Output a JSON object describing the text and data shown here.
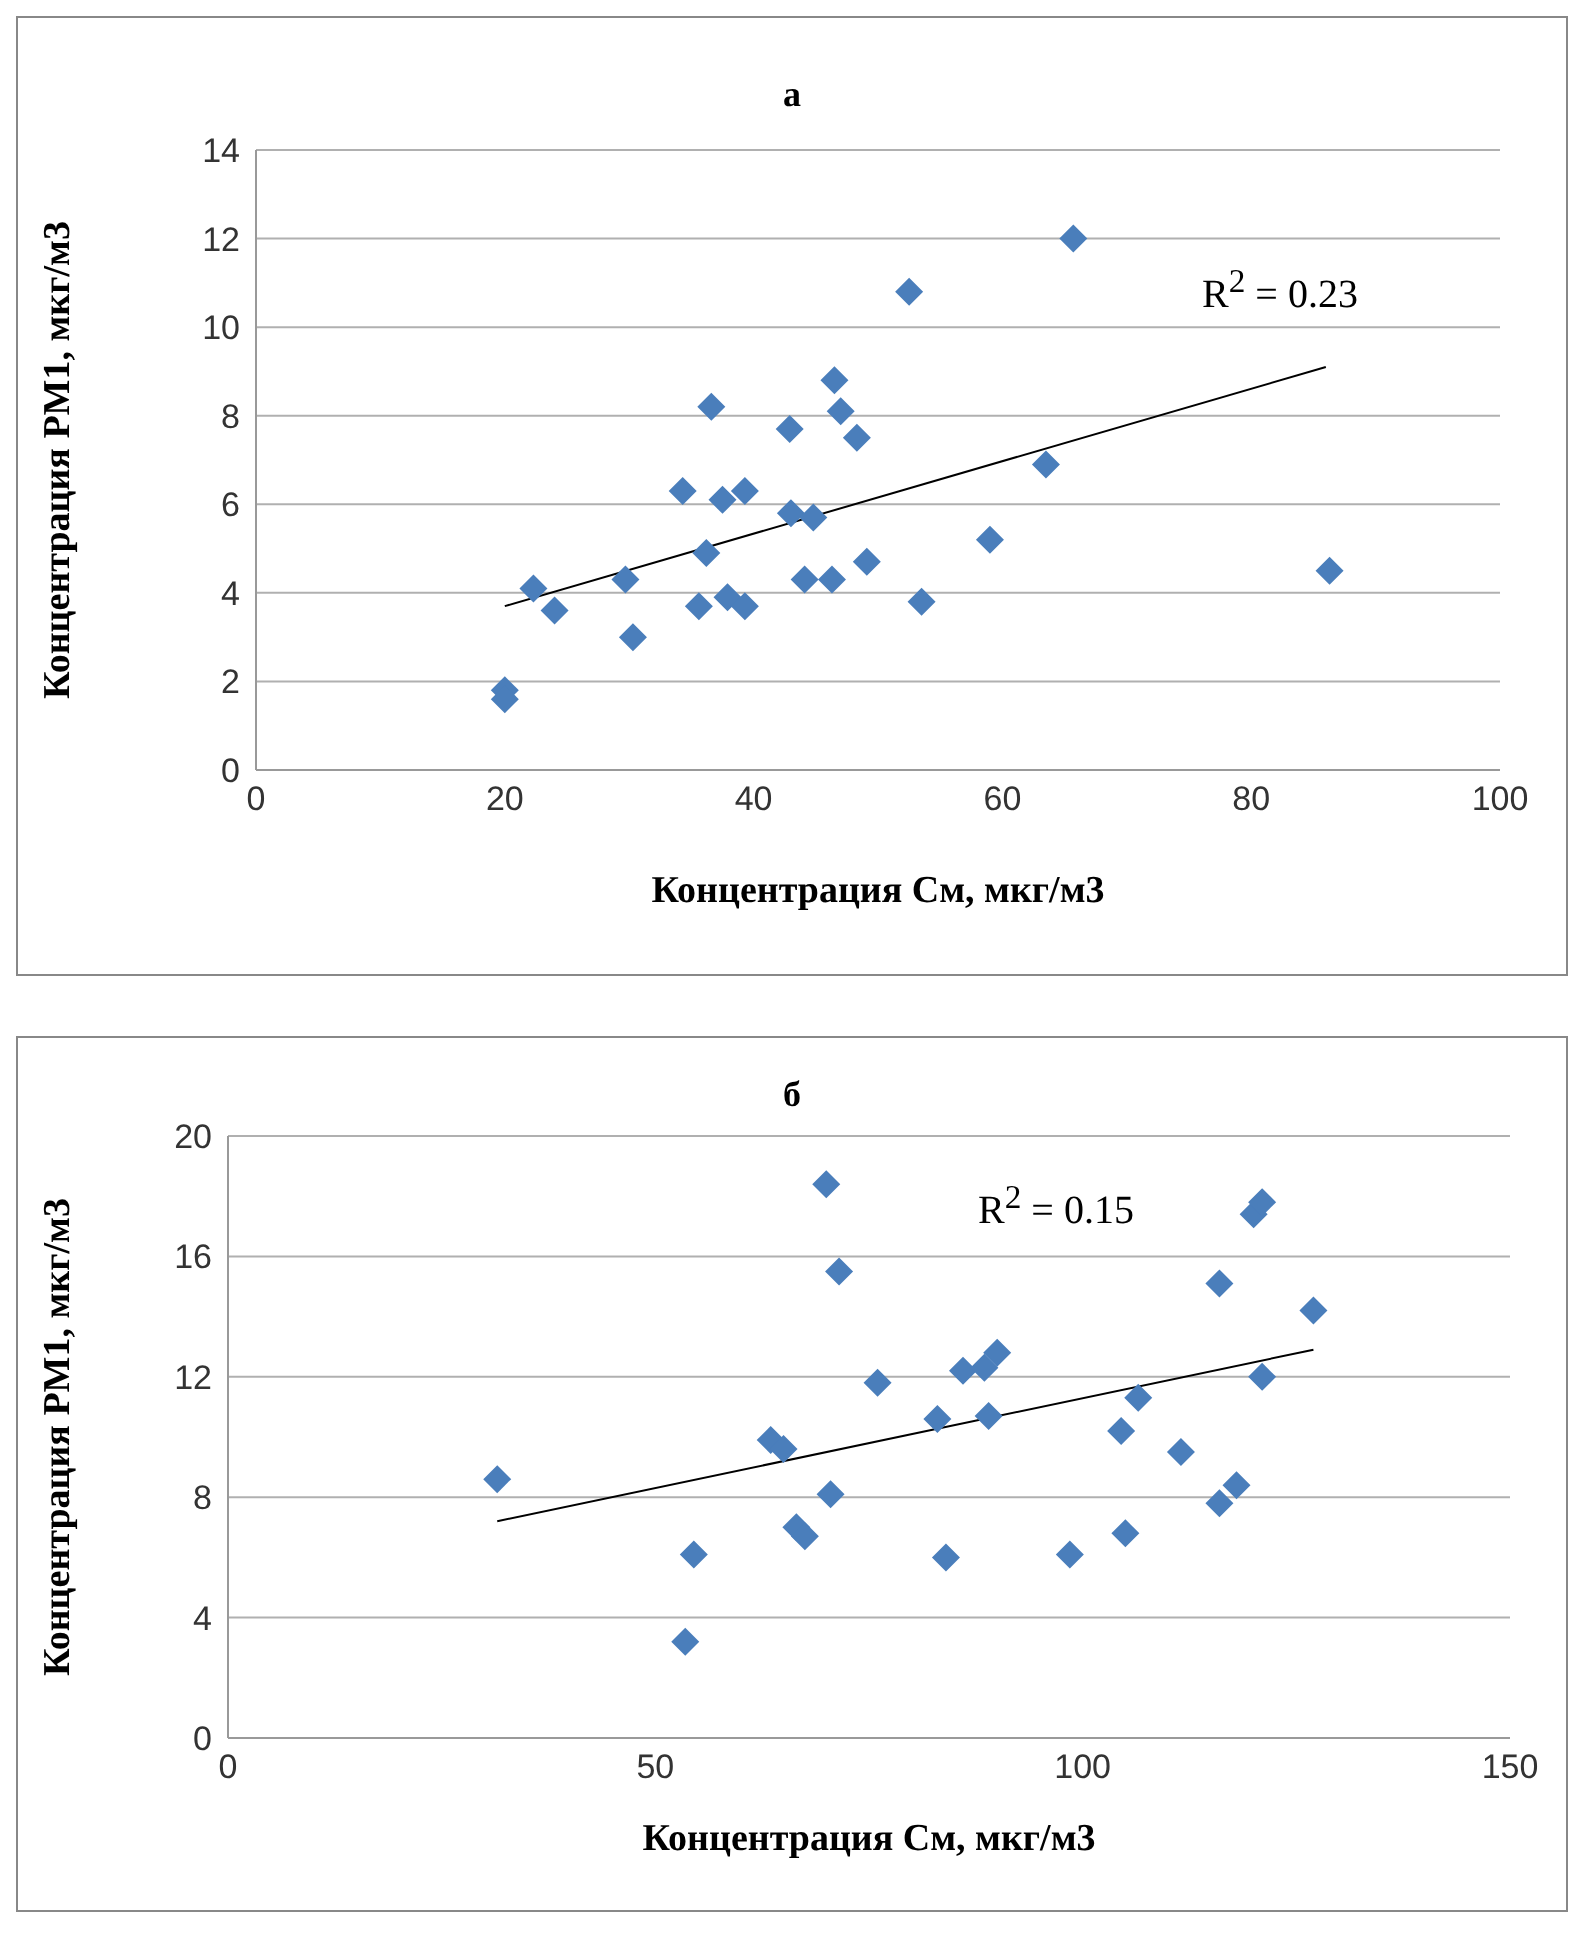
{
  "chart_data": [
    {
      "type": "scatter",
      "title": "а",
      "xlabel": "Концентрация  См, мкг/м3",
      "ylabel": "Концентрация PM1, мкг/м3",
      "xlim": [
        0,
        100
      ],
      "xticks": [
        0,
        20,
        40,
        60,
        80,
        100
      ],
      "ylim": [
        0,
        14
      ],
      "yticks": [
        0,
        2,
        4,
        6,
        8,
        10,
        12,
        14
      ],
      "grid": "y",
      "annotations": [
        "R$^{2}$ = 0.23"
      ],
      "series": [
        {
          "marker": "diamond",
          "color": "#4a7ebb",
          "x": [
            20,
            20,
            22.3,
            24,
            29.7,
            30.3,
            34.3,
            35.6,
            36.2,
            36.6,
            37.5,
            37.9,
            39.3,
            39.3,
            42.9,
            43,
            44.1,
            44.8,
            46.3,
            46.5,
            47,
            48.3,
            49.1,
            52.5,
            53.5,
            59,
            63.5,
            65.7,
            86.3
          ],
          "values": [
            1.8,
            1.6,
            4.1,
            3.6,
            4.3,
            3.0,
            6.3,
            3.7,
            4.9,
            8.2,
            6.1,
            3.9,
            6.3,
            3.7,
            7.7,
            5.8,
            4.3,
            5.7,
            4.3,
            8.8,
            8.1,
            7.5,
            4.7,
            10.8,
            3.8,
            5.2,
            6.9,
            12.0,
            4.5
          ]
        },
        {
          "type": "line",
          "color": "#000000",
          "x": [
            20,
            86
          ],
          "values": [
            3.7,
            9.1
          ]
        }
      ]
    },
    {
      "type": "scatter",
      "title": "б",
      "xlabel": "Концентрация См, мкг/м3",
      "ylabel": "Концентрация PM1, мкг/м3",
      "xlim": [
        0,
        150
      ],
      "xticks": [
        0,
        50,
        100,
        150
      ],
      "ylim": [
        0,
        20
      ],
      "yticks": [
        0,
        4,
        8,
        12,
        16,
        20
      ],
      "grid": "y",
      "annotations": [
        "R$^{2}$ = 0.15"
      ],
      "series": [
        {
          "marker": "diamond",
          "color": "#4a7ebb",
          "x": [
            31.5,
            53.5,
            54.5,
            63.5,
            65,
            66.5,
            67.5,
            70,
            70.5,
            71.5,
            76,
            83,
            84,
            86,
            88.5,
            89,
            90,
            98.5,
            104.5,
            105,
            106.5,
            111.5,
            116,
            116,
            118,
            120,
            121,
            121,
            127
          ],
          "values": [
            8.6,
            3.2,
            6.1,
            9.9,
            9.6,
            7.0,
            6.7,
            18.4,
            8.1,
            15.5,
            11.8,
            10.6,
            6.0,
            12.2,
            12.3,
            10.7,
            12.8,
            6.1,
            10.2,
            6.8,
            11.3,
            9.5,
            15.1,
            7.8,
            8.4,
            17.4,
            17.8,
            12.0,
            14.2
          ]
        },
        {
          "type": "line",
          "color": "#000000",
          "x": [
            31.5,
            127
          ],
          "values": [
            7.2,
            12.9
          ]
        }
      ]
    }
  ]
}
